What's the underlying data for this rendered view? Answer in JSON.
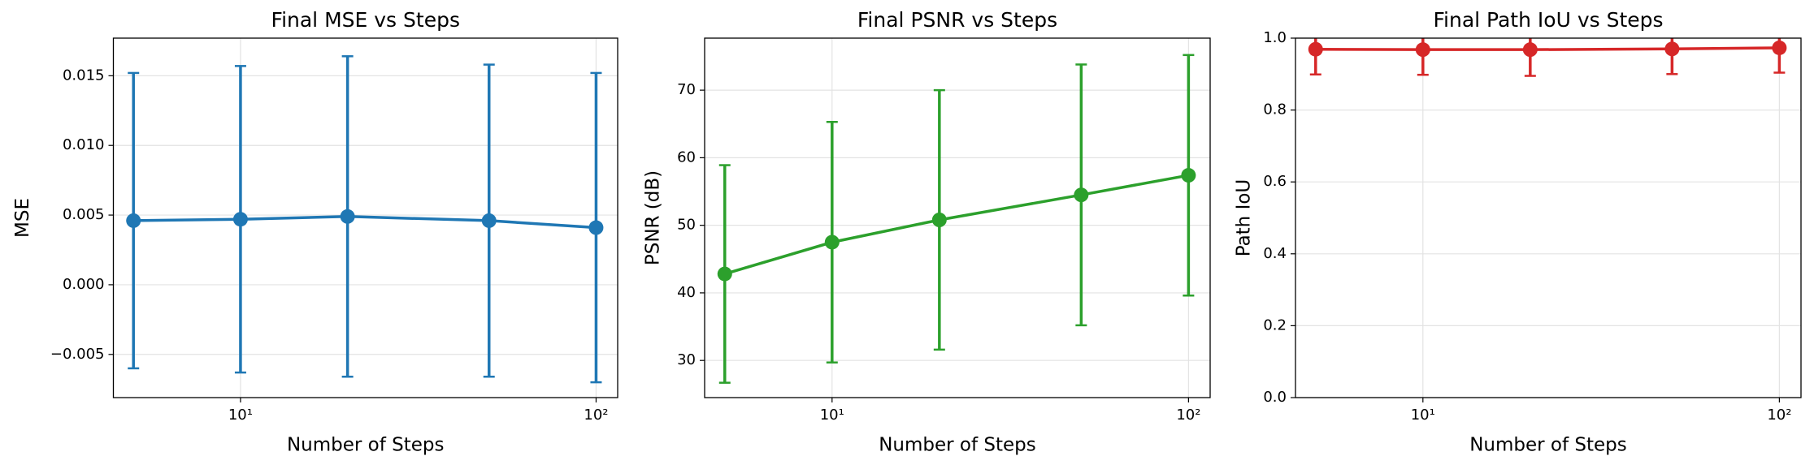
{
  "chart_data": [
    {
      "type": "line",
      "title": "Final MSE vs Steps",
      "xlabel": "Number of Steps",
      "ylabel": "MSE",
      "x": [
        5,
        10,
        20,
        50,
        100
      ],
      "log_x": true,
      "grid": true,
      "color": "#1f77b4",
      "values": [
        0.0046,
        0.0047,
        0.0049,
        0.0046,
        0.0041
      ],
      "errors": [
        0.0106,
        0.011,
        0.0115,
        0.0112,
        0.0111
      ],
      "xlim": [
        4.39,
        115
      ],
      "xticks": [
        {
          "value": 10,
          "label": "10¹"
        },
        {
          "value": 100,
          "label": "10²"
        }
      ],
      "ylim": [
        -0.0081,
        0.0177
      ],
      "yticks": [
        {
          "value": -0.005,
          "label": "−0.005"
        },
        {
          "value": 0,
          "label": "0.000"
        },
        0.005,
        {
          "value": 0.01,
          "label": "0.010"
        },
        0.015
      ]
    },
    {
      "type": "line",
      "title": "Final PSNR vs Steps",
      "xlabel": "Number of Steps",
      "ylabel": "PSNR (dB)",
      "x": [
        5,
        10,
        20,
        50,
        100
      ],
      "log_x": true,
      "grid": true,
      "color": "#2ca02c",
      "values": [
        42.8,
        47.5,
        50.8,
        54.5,
        57.4
      ],
      "errors": [
        16.1,
        17.8,
        19.2,
        19.3,
        17.8
      ],
      "xlim": [
        4.39,
        115
      ],
      "xticks": [
        {
          "value": 10,
          "label": "10¹"
        },
        {
          "value": 100,
          "label": "10²"
        }
      ],
      "ylim": [
        24.5,
        77.7
      ],
      "yticks": [
        30,
        40,
        50,
        60,
        70
      ]
    },
    {
      "type": "line",
      "title": "Final Path IoU vs Steps",
      "xlabel": "Number of Steps",
      "ylabel": "Path IoU",
      "x": [
        5,
        10,
        20,
        50,
        100
      ],
      "log_x": true,
      "grid": true,
      "color": "#d62728",
      "values": [
        0.969,
        0.968,
        0.968,
        0.97,
        0.973
      ],
      "errors": [
        0.07,
        0.07,
        0.073,
        0.07,
        0.069
      ],
      "xlim": [
        4.39,
        115
      ],
      "xticks": [
        {
          "value": 10,
          "label": "10¹"
        },
        {
          "value": 100,
          "label": "10²"
        }
      ],
      "ylim": [
        0,
        1
      ],
      "yticks": [
        {
          "value": 0,
          "label": "0.0"
        },
        0.2,
        0.4,
        0.6,
        0.8,
        {
          "value": 1,
          "label": "1.0"
        }
      ]
    }
  ]
}
